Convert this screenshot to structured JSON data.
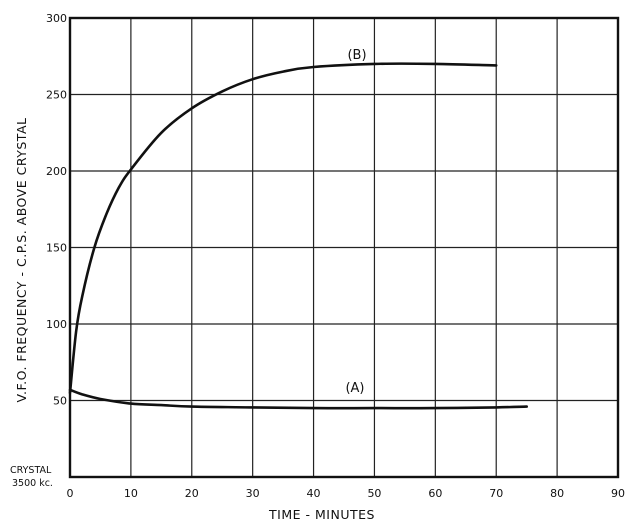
{
  "chart_data": {
    "type": "line",
    "title": "",
    "xlabel": "TIME - MINUTES",
    "ylabel": "V.F.O. FREQUENCY - C.P.S. ABOVE CRYSTAL",
    "xlim": [
      0,
      90
    ],
    "ylim": [
      0,
      300
    ],
    "xticks": [
      0,
      10,
      20,
      30,
      40,
      50,
      60,
      70,
      80,
      90
    ],
    "yticks": [
      50,
      100,
      150,
      200,
      250,
      300
    ],
    "grid": true,
    "baseline_label": [
      "CRYSTAL",
      "3500 kc."
    ],
    "series": [
      {
        "name": "(B)",
        "x": [
          0,
          1,
          2,
          4,
          6,
          8,
          10,
          15,
          20,
          25,
          30,
          35,
          40,
          50,
          60,
          70
        ],
        "y": [
          55,
          95,
          118,
          150,
          172,
          189,
          201,
          225,
          241,
          252,
          260,
          265,
          268,
          270,
          270,
          269
        ]
      },
      {
        "name": "(A)",
        "x": [
          0,
          2,
          5,
          10,
          15,
          20,
          30,
          40,
          50,
          60,
          70,
          75
        ],
        "y": [
          57,
          54,
          51,
          48,
          47,
          46,
          45.5,
          45,
          45,
          45,
          45.5,
          46
        ]
      }
    ]
  }
}
